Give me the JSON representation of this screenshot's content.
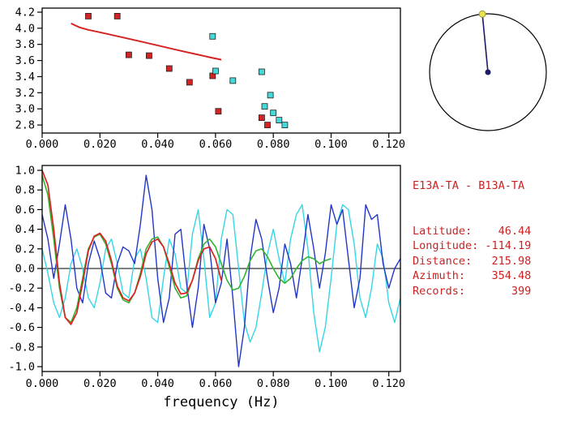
{
  "info_panel": {
    "title": "E13A-TA - B13A-TA",
    "rows": [
      {
        "label": "Latitude:",
        "value": "46.44"
      },
      {
        "label": "Longitude:",
        "value": "-114.19"
      },
      {
        "label": "Distance:",
        "value": "215.98"
      },
      {
        "label": "Azimuth:",
        "value": "354.48"
      },
      {
        "label": "Records:",
        "value": "399"
      }
    ],
    "pad_width": 18,
    "text_color": "#cc2222"
  },
  "chart_data": [
    {
      "id": "dispersion-scatter",
      "type": "scatter",
      "title": "",
      "xlabel": "",
      "ylabel": "",
      "xlim": [
        0,
        0.124
      ],
      "ylim": [
        2.7,
        4.25
      ],
      "grid": false,
      "xticks": {
        "values": [
          0,
          0.02,
          0.04,
          0.06,
          0.08,
          0.1,
          0.12
        ],
        "labels": [
          "0.000",
          "0.020",
          "0.040",
          "0.060",
          "0.080",
          "0.100",
          "0.120"
        ]
      },
      "yticks": {
        "values": [
          4.2,
          4.0,
          3.8,
          3.6,
          3.4,
          3.2,
          3.0,
          2.8
        ],
        "labels": [
          "4.2",
          "4.0",
          "3.8",
          "3.6",
          "3.4",
          "3.2",
          "3.0",
          "2.8"
        ]
      },
      "series": [
        {
          "name": "red-squares",
          "marker": "square",
          "color": "#d42323",
          "points": [
            [
              0.016,
              4.15
            ],
            [
              0.026,
              4.15
            ],
            [
              0.03,
              3.67
            ],
            [
              0.037,
              3.66
            ],
            [
              0.044,
              3.5
            ],
            [
              0.051,
              3.33
            ],
            [
              0.059,
              3.41
            ],
            [
              0.061,
              2.97
            ],
            [
              0.076,
              2.89
            ],
            [
              0.078,
              2.8
            ]
          ]
        },
        {
          "name": "cyan-squares",
          "marker": "square",
          "color": "#45d9d9",
          "points": [
            [
              0.059,
              3.9
            ],
            [
              0.06,
              3.47
            ],
            [
              0.066,
              3.35
            ],
            [
              0.076,
              3.46
            ],
            [
              0.079,
              3.17
            ],
            [
              0.077,
              3.03
            ],
            [
              0.08,
              2.95
            ],
            [
              0.082,
              2.86
            ],
            [
              0.084,
              2.8
            ]
          ]
        },
        {
          "name": "dispersion-model-curve",
          "color": "#d42323",
          "width": 2,
          "points": [
            [
              0.01,
              4.06
            ],
            [
              0.013,
              4.01
            ],
            [
              0.016,
              3.98
            ],
            [
              0.02,
              3.95
            ],
            [
              0.025,
              3.91
            ],
            [
              0.03,
              3.87
            ],
            [
              0.036,
              3.82
            ],
            [
              0.042,
              3.77
            ],
            [
              0.048,
              3.72
            ],
            [
              0.053,
              3.68
            ],
            [
              0.058,
              3.64
            ],
            [
              0.062,
              3.61
            ]
          ]
        }
      ]
    },
    {
      "id": "waveform-overlay",
      "type": "line",
      "title": "",
      "xlabel": "frequency (Hz)",
      "ylabel": "",
      "xlim": [
        0,
        0.124
      ],
      "ylim": [
        -1.05,
        1.05
      ],
      "zero_line": true,
      "grid": false,
      "xticks": {
        "values": [
          0,
          0.02,
          0.04,
          0.06,
          0.08,
          0.1,
          0.12
        ],
        "labels": [
          "0.000",
          "0.020",
          "0.040",
          "0.060",
          "0.080",
          "0.100",
          "0.120"
        ]
      },
      "yticks": {
        "values": [
          1.0,
          0.8,
          0.6,
          0.4,
          0.2,
          0.0,
          -0.2,
          -0.4,
          -0.6,
          -0.8,
          -1.0
        ],
        "labels": [
          "1.0",
          "0.8",
          "0.6",
          "0.4",
          "0.2",
          "0.0",
          "-0.2",
          "-0.4",
          "-0.6",
          "-0.8",
          "-1.0"
        ]
      },
      "series": [
        {
          "name": "cyan-waveform",
          "color": "#35d6e6",
          "width": 1.4,
          "x0": 0,
          "dx": 0.002,
          "y": [
            0.2,
            -0.05,
            -0.35,
            -0.5,
            -0.3,
            0.05,
            0.2,
            0.0,
            -0.3,
            -0.4,
            -0.15,
            0.2,
            0.3,
            0.05,
            -0.25,
            -0.3,
            0.1,
            0.2,
            -0.1,
            -0.5,
            -0.55,
            -0.1,
            0.3,
            0.15,
            -0.2,
            -0.25,
            0.35,
            0.6,
            0.1,
            -0.5,
            -0.35,
            0.3,
            0.6,
            0.55,
            0.0,
            -0.55,
            -0.75,
            -0.6,
            -0.25,
            0.15,
            0.4,
            0.1,
            -0.15,
            0.3,
            0.55,
            0.65,
            0.2,
            -0.45,
            -0.85,
            -0.6,
            -0.1,
            0.45,
            0.65,
            0.6,
            0.25,
            -0.3,
            -0.5,
            -0.2,
            0.25,
            0.1,
            -0.35,
            -0.55,
            -0.3
          ]
        },
        {
          "name": "blue-waveform",
          "color": "#2236c8",
          "width": 1.4,
          "x0": 0,
          "dx": 0.002,
          "y": [
            0.55,
            0.3,
            -0.1,
            0.25,
            0.65,
            0.3,
            -0.2,
            -0.35,
            0.05,
            0.28,
            0.1,
            -0.25,
            -0.3,
            0.05,
            0.22,
            0.18,
            0.05,
            0.45,
            0.95,
            0.6,
            -0.1,
            -0.55,
            -0.3,
            0.35,
            0.4,
            -0.15,
            -0.6,
            -0.2,
            0.45,
            0.2,
            -0.35,
            -0.15,
            0.3,
            -0.3,
            -1.0,
            -0.6,
            0.1,
            0.5,
            0.3,
            -0.1,
            -0.45,
            -0.2,
            0.25,
            0.05,
            -0.3,
            0.1,
            0.55,
            0.2,
            -0.2,
            0.15,
            0.65,
            0.45,
            0.6,
            0.1,
            -0.4,
            -0.1,
            0.65,
            0.5,
            0.55,
            0.05,
            -0.2,
            0.0,
            0.1
          ]
        },
        {
          "name": "green-waveform",
          "color": "#2eb42e",
          "width": 1.6,
          "x0": 0,
          "dx": 0.002,
          "y": [
            0.95,
            0.75,
            0.3,
            -0.2,
            -0.5,
            -0.55,
            -0.4,
            -0.1,
            0.2,
            0.32,
            0.35,
            0.25,
            0.05,
            -0.2,
            -0.32,
            -0.35,
            -0.25,
            -0.05,
            0.2,
            0.3,
            0.32,
            0.22,
            0.02,
            -0.2,
            -0.3,
            -0.28,
            -0.12,
            0.1,
            0.25,
            0.3,
            0.22,
            0.05,
            -0.12,
            -0.22,
            -0.2,
            -0.08,
            0.08,
            0.18,
            0.2,
            0.12,
            0.0,
            -0.1,
            -0.15,
            -0.1,
            0.0,
            0.08,
            0.12,
            0.1,
            0.05,
            0.08,
            0.1
          ]
        },
        {
          "name": "red-waveform",
          "color": "#e02020",
          "width": 1.7,
          "x0": 0,
          "dx": 0.002,
          "y": [
            1.0,
            0.85,
            0.4,
            -0.15,
            -0.5,
            -0.57,
            -0.45,
            -0.15,
            0.18,
            0.33,
            0.36,
            0.28,
            0.08,
            -0.18,
            -0.3,
            -0.33,
            -0.25,
            -0.08,
            0.15,
            0.27,
            0.3,
            0.22,
            0.05,
            -0.15,
            -0.26,
            -0.25,
            -0.12,
            0.08,
            0.2,
            0.22,
            0.1,
            -0.12
          ]
        }
      ]
    },
    {
      "id": "azimuth-diagram",
      "type": "diagram",
      "azimuth_deg": 354.48,
      "circle_color": "#000000",
      "line_color": "#1b1b66",
      "station_dot_color": "#e8e34f",
      "center_dot_color": "#1b1b66"
    }
  ]
}
